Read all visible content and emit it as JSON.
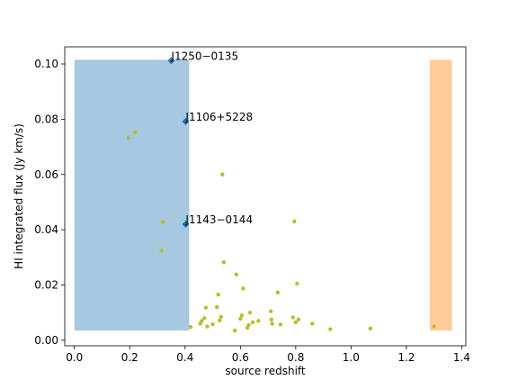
{
  "chart_data": {
    "type": "scatter",
    "title": "",
    "xlabel": "source redshift",
    "ylabel": "HI integrated flux (Jy km/s)",
    "xlim": [
      -0.035,
      1.415
    ],
    "ylim": [
      -0.002,
      0.1062
    ],
    "xticks": [
      0.0,
      0.2,
      0.4,
      0.6,
      0.8,
      1.0,
      1.2,
      1.4
    ],
    "xtick_labels": [
      "0.0",
      "0.2",
      "0.4",
      "0.6",
      "0.8",
      "1.0",
      "1.2",
      "1.4"
    ],
    "yticks": [
      0.0,
      0.02,
      0.04,
      0.06,
      0.08,
      0.1
    ],
    "ytick_labels": [
      "0.00",
      "0.02",
      "0.04",
      "0.06",
      "0.08",
      "0.10"
    ],
    "grid": false,
    "shaded_regions": [
      {
        "x": [
          0.0,
          0.415
        ],
        "y": [
          0.0035,
          0.1015
        ],
        "color": "#a6c8e1"
      },
      {
        "x": [
          1.285,
          1.365
        ],
        "y": [
          0.0035,
          0.1015
        ],
        "color": "#ffcc99"
      }
    ],
    "series": [
      {
        "marker": "dot",
        "color": "#bcbd22",
        "points": [
          [
            0.195,
            0.0733
          ],
          [
            0.22,
            0.0753
          ],
          [
            0.32,
            0.0428
          ],
          [
            0.315,
            0.0325
          ],
          [
            0.42,
            0.0048
          ],
          [
            0.46,
            0.007
          ],
          [
            0.47,
            0.008
          ],
          [
            0.455,
            0.006
          ],
          [
            0.475,
            0.0118
          ],
          [
            0.48,
            0.005
          ],
          [
            0.5,
            0.0058
          ],
          [
            0.515,
            0.012
          ],
          [
            0.52,
            0.0165
          ],
          [
            0.525,
            0.0072
          ],
          [
            0.53,
            0.0085
          ],
          [
            0.535,
            0.06
          ],
          [
            0.54,
            0.0282
          ],
          [
            0.58,
            0.0035
          ],
          [
            0.585,
            0.0238
          ],
          [
            0.6,
            0.0078
          ],
          [
            0.605,
            0.009
          ],
          [
            0.61,
            0.0187
          ],
          [
            0.625,
            0.0045
          ],
          [
            0.63,
            0.0055
          ],
          [
            0.635,
            0.01
          ],
          [
            0.645,
            0.0065
          ],
          [
            0.665,
            0.007
          ],
          [
            0.71,
            0.0105
          ],
          [
            0.712,
            0.0075
          ],
          [
            0.715,
            0.006
          ],
          [
            0.735,
            0.0173
          ],
          [
            0.745,
            0.0057
          ],
          [
            0.79,
            0.0083
          ],
          [
            0.795,
            0.043
          ],
          [
            0.8,
            0.0065
          ],
          [
            0.805,
            0.0205
          ],
          [
            0.81,
            0.0075
          ],
          [
            0.86,
            0.006
          ],
          [
            0.925,
            0.004
          ],
          [
            1.07,
            0.0042
          ],
          [
            1.3,
            0.005
          ]
        ]
      },
      {
        "marker": "diamond",
        "color": "#1f77b4",
        "points": [
          [
            0.35,
            0.1012
          ],
          [
            0.402,
            0.0792
          ],
          [
            0.402,
            0.042
          ]
        ]
      }
    ],
    "annotations": [
      {
        "text": "J1250−0135",
        "x": 0.35,
        "y": 0.1012
      },
      {
        "text": "J1106+5228",
        "x": 0.402,
        "y": 0.0792
      },
      {
        "text": "J1143−0144",
        "x": 0.402,
        "y": 0.042
      }
    ]
  }
}
